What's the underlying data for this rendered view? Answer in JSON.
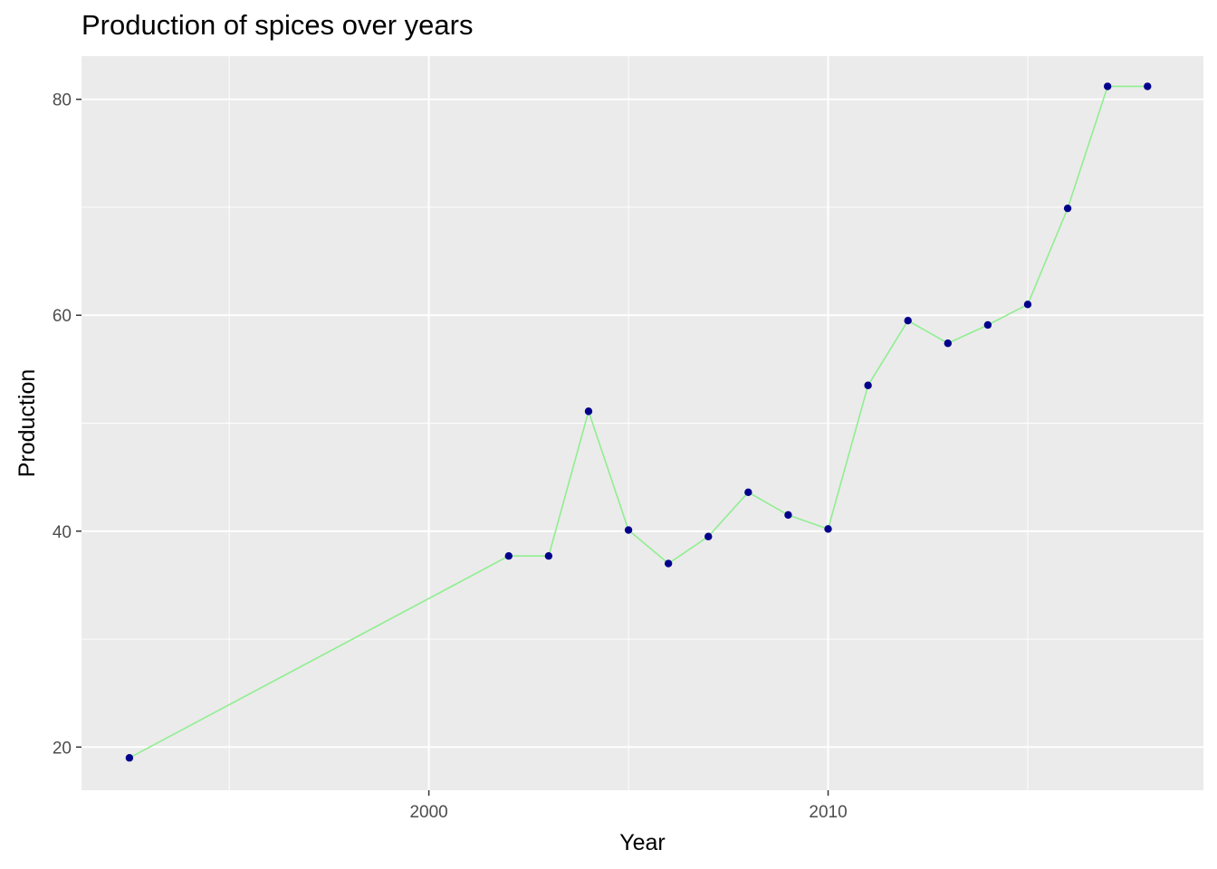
{
  "chart_data": {
    "type": "line",
    "title": "Production of spices over years",
    "xlabel": "Year",
    "ylabel": "Production",
    "xlim": [
      1991.3,
      2019.4
    ],
    "ylim": [
      16.0,
      84.0
    ],
    "x_ticks": [
      2000,
      2010
    ],
    "x_tick_labels": [
      "2000",
      "2010"
    ],
    "x_minor_ticks": [
      1995,
      2005,
      2015
    ],
    "y_ticks": [
      20,
      40,
      60,
      80
    ],
    "y_tick_labels": [
      "20",
      "40",
      "60",
      "80"
    ],
    "y_minor_ticks": [
      30,
      50,
      70
    ],
    "grid": true,
    "legend": "none",
    "panel_background": "#EBEBEB",
    "line_color": "#90EE90",
    "point_color": "#00008B",
    "series": [
      {
        "x": [
          1992.5,
          2002,
          2003,
          2004,
          2005,
          2006,
          2007,
          2008,
          2009,
          2010,
          2011,
          2012,
          2013,
          2014,
          2015,
          2016,
          2017,
          2018
        ],
        "y": [
          19.0,
          37.7,
          37.7,
          51.1,
          40.1,
          37.0,
          39.5,
          43.6,
          41.5,
          40.2,
          53.5,
          59.5,
          57.4,
          59.1,
          61.0,
          69.9,
          81.2,
          81.2
        ]
      }
    ]
  }
}
